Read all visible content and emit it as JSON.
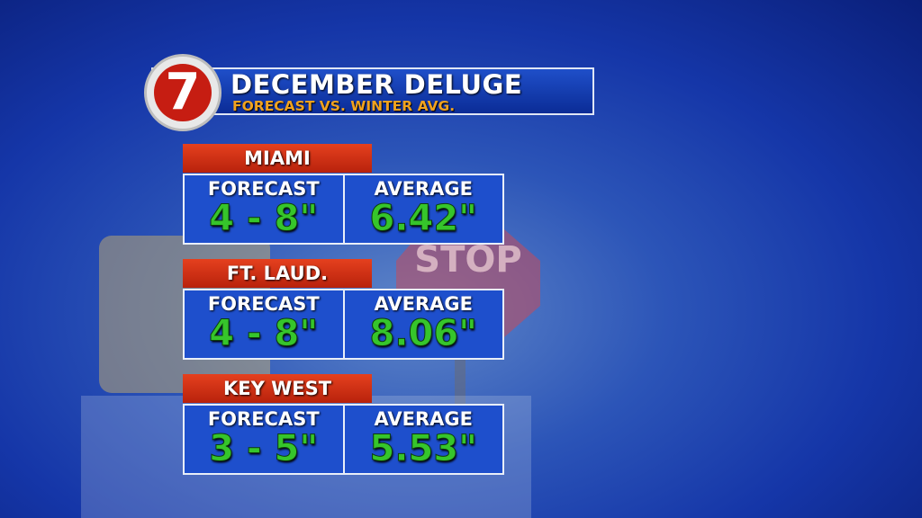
{
  "header": {
    "logo": "7",
    "title": "DECEMBER DELUGE",
    "subtitle": "FORECAST VS. WINTER AVG."
  },
  "background": {
    "sign": "STOP"
  },
  "cities": [
    {
      "name": "MIAMI",
      "forecast_label": "FORECAST",
      "forecast": "4 - 8\"",
      "average_label": "AVERAGE",
      "average": "6.42\""
    },
    {
      "name": "FT. LAUD.",
      "forecast_label": "FORECAST",
      "forecast": "4 - 8\"",
      "average_label": "AVERAGE",
      "average": "8.06\""
    },
    {
      "name": "KEY WEST",
      "forecast_label": "FORECAST",
      "forecast": "3 - 5\"",
      "average_label": "AVERAGE",
      "average": "5.53\""
    }
  ]
}
